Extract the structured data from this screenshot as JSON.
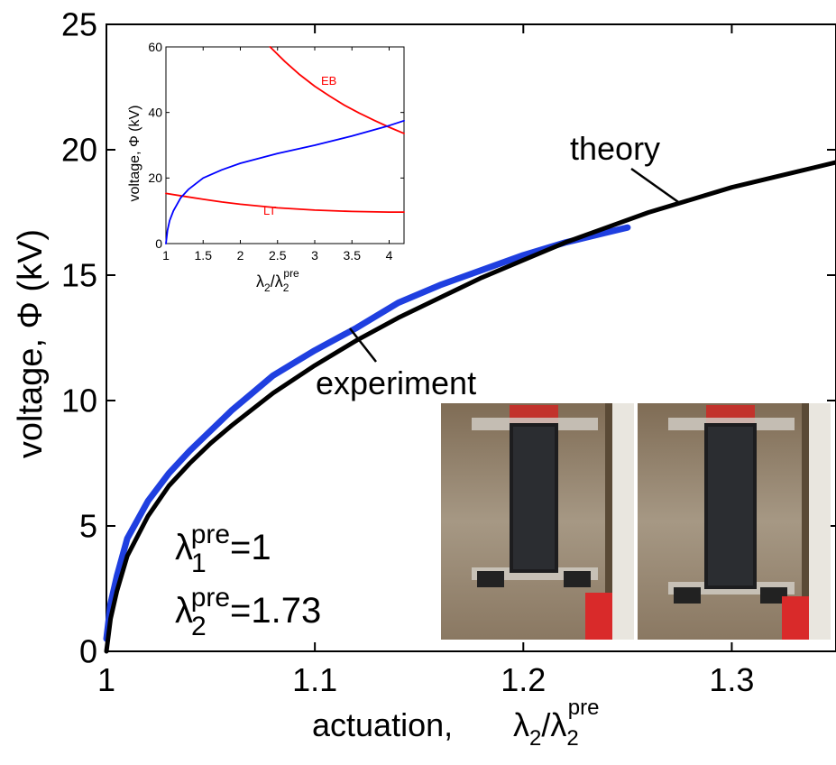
{
  "chart_data": [
    {
      "type": "line",
      "id": "main",
      "xlabel": "actuation,",
      "xlabel_math": "λ2/λ2pre",
      "ylabel": "voltage, Φ (kV)",
      "xlim": [
        1,
        1.35
      ],
      "ylim": [
        0,
        25
      ],
      "xticks": [
        1,
        1.1,
        1.2,
        1.3
      ],
      "xtick_labels": [
        "1",
        "1.1",
        "1.2",
        "1.3"
      ],
      "yticks": [
        0,
        5,
        10,
        15,
        20,
        25
      ],
      "ytick_labels": [
        "0",
        "5",
        "10",
        "15",
        "20",
        "25"
      ],
      "series": [
        {
          "name": "experiment",
          "color": "#1f3fe0",
          "x": [
            1.0,
            1.002,
            1.005,
            1.01,
            1.02,
            1.03,
            1.04,
            1.05,
            1.06,
            1.07,
            1.08,
            1.09,
            1.1,
            1.12,
            1.14,
            1.16,
            1.18,
            1.2,
            1.22,
            1.24,
            1.25
          ],
          "y": [
            0.5,
            1.9,
            3.0,
            4.5,
            6.0,
            7.1,
            8.0,
            8.8,
            9.6,
            10.3,
            11.0,
            11.5,
            12.0,
            12.9,
            13.9,
            14.6,
            15.2,
            15.8,
            16.3,
            16.7,
            16.9
          ]
        },
        {
          "name": "theory",
          "color": "#000000",
          "x": [
            1.0,
            1.002,
            1.005,
            1.01,
            1.02,
            1.03,
            1.04,
            1.05,
            1.06,
            1.08,
            1.1,
            1.12,
            1.14,
            1.16,
            1.18,
            1.2,
            1.22,
            1.24,
            1.26,
            1.28,
            1.3,
            1.32,
            1.34,
            1.35
          ],
          "y": [
            0.0,
            1.3,
            2.4,
            3.8,
            5.4,
            6.6,
            7.5,
            8.3,
            9.0,
            10.3,
            11.4,
            12.4,
            13.3,
            14.1,
            14.9,
            15.6,
            16.3,
            16.9,
            17.5,
            18.0,
            18.5,
            18.9,
            19.3,
            19.5
          ]
        }
      ],
      "annotations": [
        {
          "text": "theory",
          "x": 1.27,
          "y": 17.8
        },
        {
          "text": "experiment",
          "x": 1.118,
          "y": 12.8
        }
      ],
      "parameters": {
        "lambda1_pre": "=1",
        "lambda2_pre": "=1.73"
      }
    },
    {
      "type": "line",
      "id": "inset",
      "xlabel_math": "λ2/λ2pre",
      "ylabel": "voltage, Φ (kV)",
      "xlim": [
        1,
        4.2
      ],
      "ylim": [
        0,
        60
      ],
      "xticks": [
        1,
        1.5,
        2,
        2.5,
        3,
        3.5,
        4
      ],
      "xtick_labels": [
        "1",
        "1.5",
        "2",
        "2.5",
        "3",
        "3.5",
        "4"
      ],
      "yticks": [
        0,
        20,
        40,
        60
      ],
      "ytick_labels": [
        "0",
        "20",
        "40",
        "60"
      ],
      "series": [
        {
          "name": "EB",
          "color": "#ff0000",
          "x": [
            2.4,
            2.6,
            2.8,
            3.0,
            3.2,
            3.4,
            3.6,
            3.8,
            4.0,
            4.2
          ],
          "y": [
            60,
            55.5,
            51.5,
            48.0,
            45.0,
            42.2,
            39.8,
            37.6,
            35.5,
            33.6
          ]
        },
        {
          "name": "LT",
          "color": "#ff0000",
          "x": [
            1.0,
            1.25,
            1.5,
            1.75,
            2.0,
            2.5,
            3.0,
            3.5,
            4.0,
            4.2
          ],
          "y": [
            15.3,
            14.4,
            13.5,
            12.7,
            12.0,
            10.9,
            10.2,
            9.8,
            9.6,
            9.6
          ]
        },
        {
          "name": "",
          "color": "#0000ff",
          "x": [
            1.0,
            1.02,
            1.05,
            1.1,
            1.2,
            1.3,
            1.5,
            1.75,
            2.0,
            2.5,
            3.0,
            3.5,
            4.0,
            4.2
          ],
          "y": [
            0.0,
            4.0,
            7.0,
            10.0,
            14.0,
            16.5,
            20.0,
            22.5,
            24.5,
            27.5,
            30.0,
            32.8,
            36.0,
            37.5
          ]
        }
      ],
      "series_labels": {
        "eb": "EB",
        "lt": "LT"
      }
    }
  ],
  "photos": [
    {
      "name": "actuator-photo-off"
    },
    {
      "name": "actuator-photo-on"
    }
  ]
}
